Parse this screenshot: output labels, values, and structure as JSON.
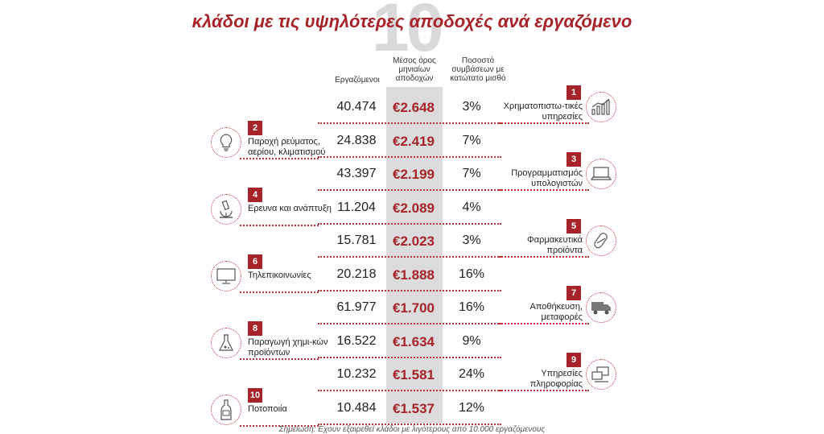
{
  "title": "κλάδοι με τις υψηλότερες αποδοχές ανά εργαζόμενο",
  "big_number": "10",
  "headers": {
    "employees": "Εργαζόμενοι",
    "salary": "Μέσος όρος μηνιαίων αποδοχών",
    "pct": "Ποσοστό συμβάσεων με κατώτατο μισθό"
  },
  "rows": [
    {
      "rank": "1",
      "sector": "Χρηματοπιστω-τικές υπηρεσίες",
      "employees": "40.474",
      "salary": "€2.648",
      "pct": "3%",
      "icon": "chart-icon",
      "side": "right"
    },
    {
      "rank": "2",
      "sector": "Παροχή ρεύματος, αερίου, κλιματισμού",
      "employees": "24.838",
      "salary": "€2.419",
      "pct": "7%",
      "icon": "lightbulb-icon",
      "side": "left"
    },
    {
      "rank": "3",
      "sector": "Προγραμματισμός υπολογιστών",
      "employees": "43.397",
      "salary": "€2.199",
      "pct": "7%",
      "icon": "laptop-icon",
      "side": "right"
    },
    {
      "rank": "4",
      "sector": "Ερευνα και ανάπτυξη",
      "employees": "11.204",
      "salary": "€2.089",
      "pct": "4%",
      "icon": "microscope-icon",
      "side": "left"
    },
    {
      "rank": "5",
      "sector": "Φαρμακευτικά προϊόντα",
      "employees": "15.781",
      "salary": "€2.023",
      "pct": "3%",
      "icon": "pill-icon",
      "side": "right"
    },
    {
      "rank": "6",
      "sector": "Τηλεπικοινωνίες",
      "employees": "20.218",
      "salary": "€1.888",
      "pct": "16%",
      "icon": "monitor-icon",
      "side": "left"
    },
    {
      "rank": "7",
      "sector": "Αποθήκευση, μεταφορές",
      "employees": "61.977",
      "salary": "€1.700",
      "pct": "16%",
      "icon": "truck-icon",
      "side": "right"
    },
    {
      "rank": "8",
      "sector": "Παραγωγή χημι-κών προϊόντων",
      "employees": "16.522",
      "salary": "€1.634",
      "pct": "9%",
      "icon": "flask-icon",
      "side": "left"
    },
    {
      "rank": "9",
      "sector": "Υπηρεσίες πληροφορίας",
      "employees": "10.232",
      "salary": "€1.581",
      "pct": "24%",
      "icon": "computer-network-icon",
      "side": "right"
    },
    {
      "rank": "10",
      "sector": "Ποτοποιία",
      "employees": "10.484",
      "salary": "€1.537",
      "pct": "12%",
      "icon": "bottle-icon",
      "side": "left"
    }
  ],
  "footnote": "Σημείωση: Εχουν εξαιρεθεί κλάδοι με λιγότερους από 10.000 εργαζόμενους",
  "colors": {
    "accent": "#a6232a",
    "highlight": "#dcdcdc"
  }
}
